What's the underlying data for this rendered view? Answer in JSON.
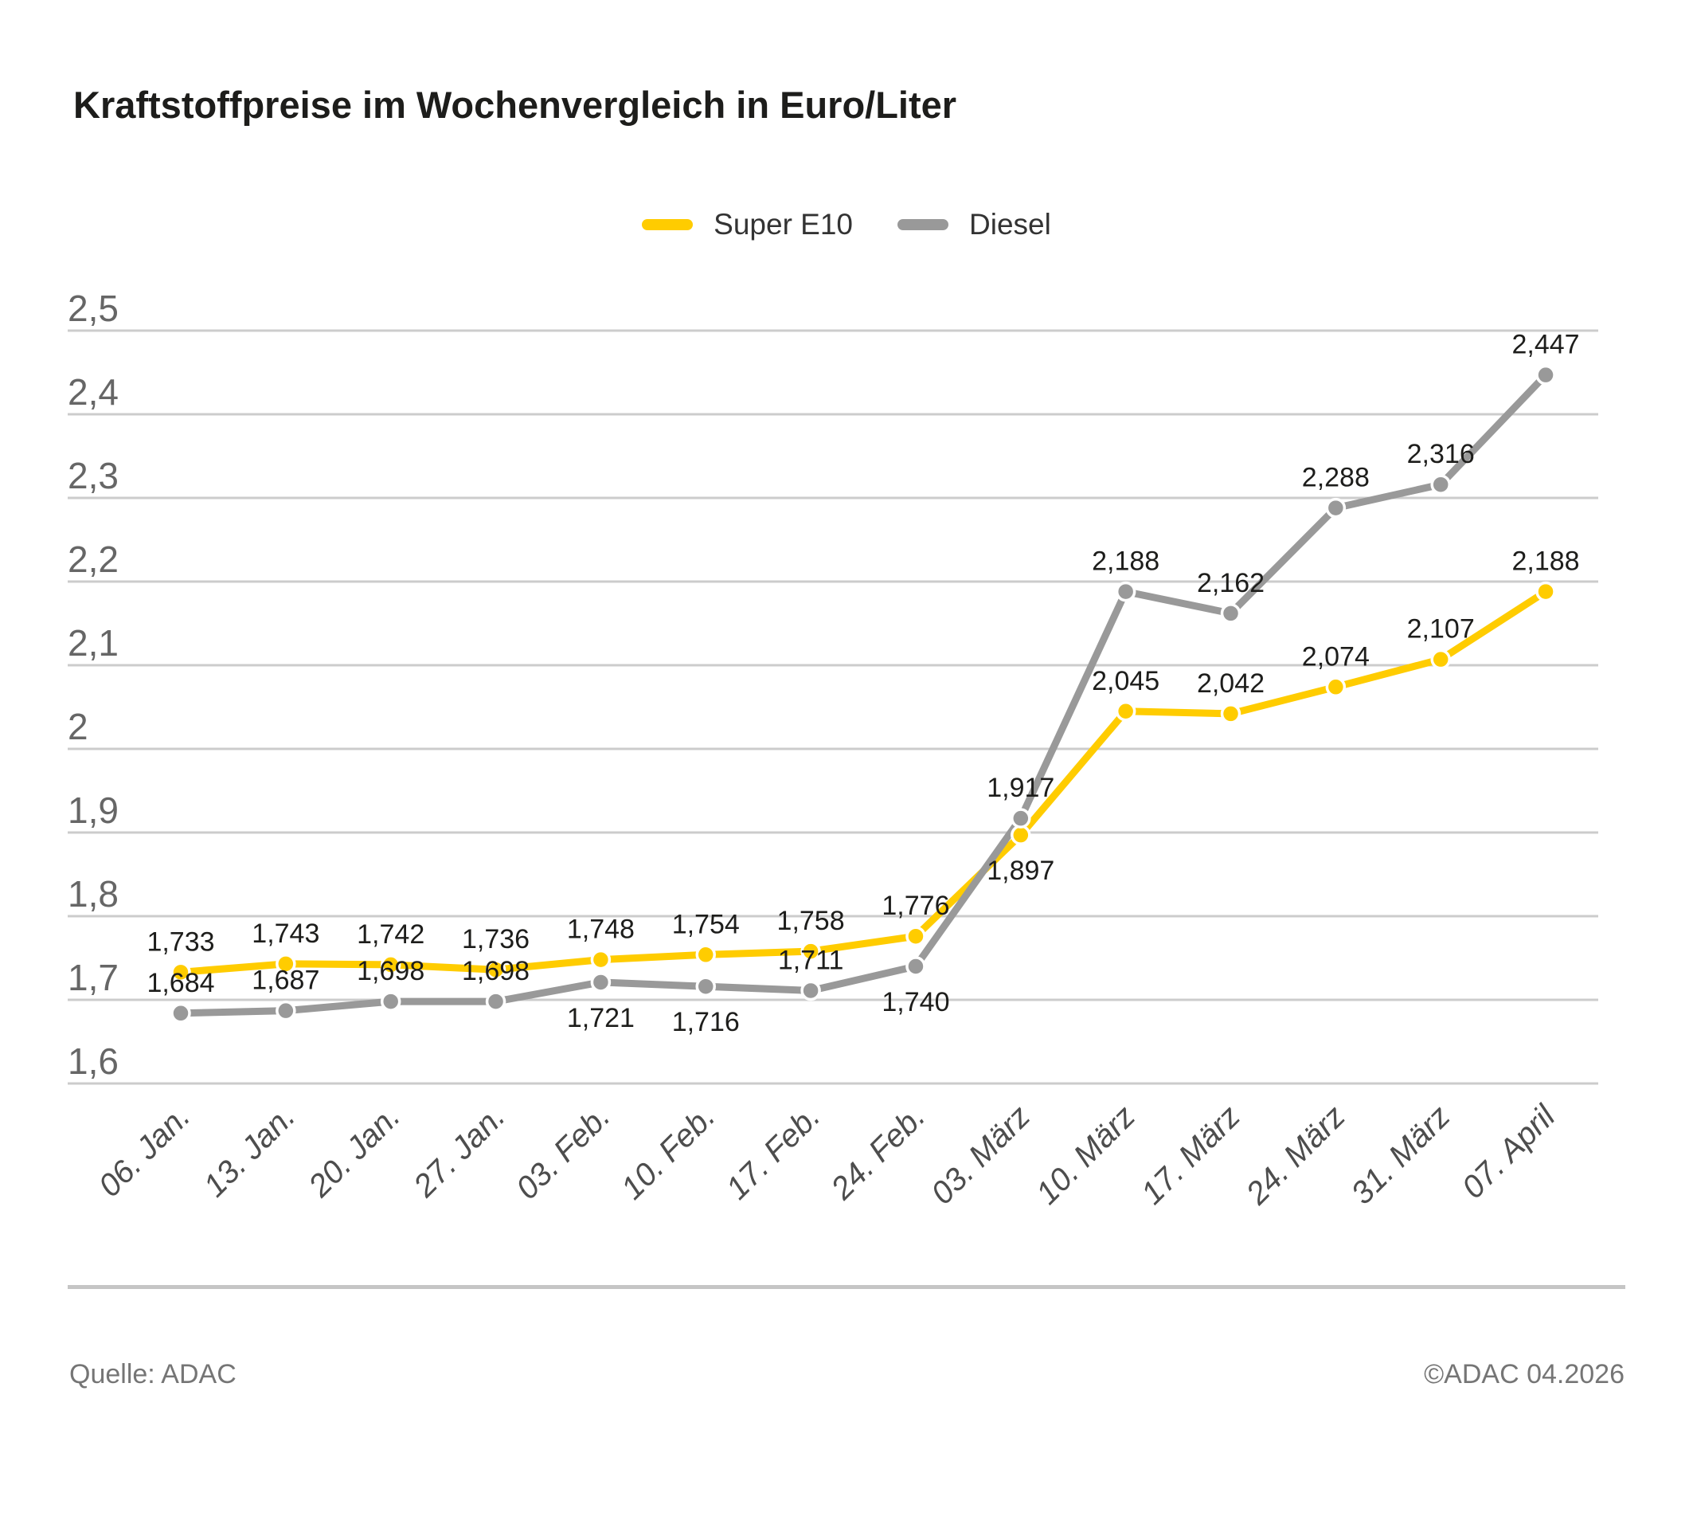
{
  "title": "Kraftstoffpreise im Wochenvergleich in Euro/Liter",
  "legend": [
    {
      "label": "Super E10",
      "color": "#FFCC00"
    },
    {
      "label": "Diesel",
      "color": "#999999"
    }
  ],
  "footer": {
    "source": "Quelle: ADAC",
    "copyright": "©ADAC 04.2026"
  },
  "chart_data": {
    "type": "line",
    "title": "Kraftstoffpreise im Wochenvergleich in Euro/Liter",
    "unit": "Euro/Liter",
    "categories": [
      "06. Jan.",
      "13. Jan.",
      "20. Jan.",
      "27. Jan.",
      "03. Feb.",
      "10. Feb.",
      "17. Feb.",
      "24. Feb.",
      "03. März",
      "10. März",
      "17. März",
      "24. März",
      "31. März",
      "07. April"
    ],
    "series": [
      {
        "name": "Super E10",
        "color": "#FFCC00",
        "values": [
          1.733,
          1.743,
          1.742,
          1.736,
          1.748,
          1.754,
          1.758,
          1.776,
          1.897,
          2.045,
          2.042,
          2.074,
          2.107,
          2.188
        ],
        "labels": [
          "1,733",
          "1,743",
          "1,742",
          "1,736",
          "1,748",
          "1,754",
          "1,758",
          "1,776",
          "1,897",
          "2,045",
          "2,042",
          "2,074",
          "2,107",
          "2,188"
        ],
        "label_position": [
          "above",
          "above",
          "above",
          "above",
          "above",
          "above",
          "above",
          "above",
          "below",
          "above",
          "above",
          "above",
          "above",
          "above"
        ]
      },
      {
        "name": "Diesel",
        "color": "#999999",
        "values": [
          1.684,
          1.687,
          1.698,
          1.698,
          1.721,
          1.716,
          1.711,
          1.74,
          1.917,
          2.188,
          2.162,
          2.288,
          2.316,
          2.447
        ],
        "labels": [
          "1,684",
          "1,687",
          "1,698",
          "1,698",
          "1,721",
          "1,716",
          "1,711",
          "1,740",
          "1,917",
          "2,188",
          "2,162",
          "2,288",
          "2,316",
          "2,447"
        ],
        "label_position": [
          "above",
          "above",
          "above",
          "above",
          "below",
          "below",
          "above",
          "below",
          "above",
          "above",
          "above",
          "above",
          "above",
          "above"
        ]
      }
    ],
    "y_axis": {
      "min": 1.6,
      "max": 2.5,
      "step": 0.1,
      "tick_labels": [
        "1,6",
        "1,7",
        "1,8",
        "1,9",
        "2",
        "2,1",
        "2,2",
        "2,3",
        "2,4",
        "2,5"
      ]
    },
    "x_axis": {
      "label_rotation": -45,
      "italic": true
    },
    "grid": true,
    "legend_position": "top",
    "colors": {
      "grid": "#cccccc",
      "y_tick_text": "#666666",
      "x_tick_text": "#4d4d4d",
      "data_label_text": "#1d1d1b",
      "marker_border": "#ffffff"
    }
  }
}
